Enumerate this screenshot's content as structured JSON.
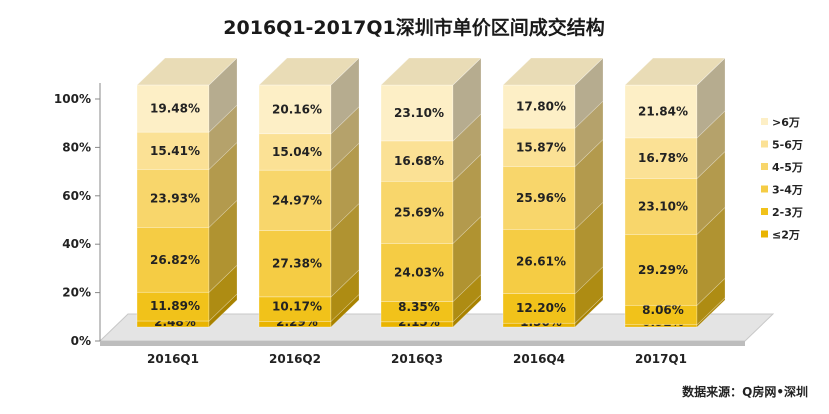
{
  "chart_data": {
    "type": "bar",
    "stacked": true,
    "title": "2016Q1-2017Q1深圳市单价区间成交结构",
    "categories": [
      "2016Q1",
      "2016Q2",
      "2016Q3",
      "2016Q4",
      "2017Q1"
    ],
    "series": [
      {
        "name": "≤2万",
        "color": "#E9B400",
        "values": [
          2.48,
          2.29,
          2.15,
          1.56,
          0.92
        ],
        "labels": [
          "2.48%",
          "2.29%",
          "2.15%",
          "1.56%",
          "0.92%"
        ]
      },
      {
        "name": "2-3万",
        "color": "#F1C21A",
        "values": [
          11.89,
          10.17,
          8.35,
          12.2,
          8.06
        ],
        "labels": [
          "11.89%",
          "10.17%",
          "8.35%",
          "12.20%",
          "8.06%"
        ]
      },
      {
        "name": "3-4万",
        "color": "#F5CC44",
        "values": [
          26.82,
          27.38,
          24.03,
          26.61,
          29.29
        ],
        "labels": [
          "26.82%",
          "27.38%",
          "24.03%",
          "26.61%",
          "29.29%"
        ]
      },
      {
        "name": "4-5万",
        "color": "#F8D66B",
        "values": [
          23.93,
          24.97,
          25.69,
          25.96,
          23.1
        ],
        "labels": [
          "23.93%",
          "24.97%",
          "25.69%",
          "25.96%",
          "23.10%"
        ]
      },
      {
        "name": "5-6万",
        "color": "#FBE195",
        "values": [
          15.41,
          15.04,
          16.68,
          15.87,
          16.78
        ],
        "labels": [
          "15.41%",
          "15.04%",
          "16.68%",
          "15.87%",
          "16.78%"
        ]
      },
      {
        "name": ">6万",
        "color": "#FDEFC6",
        "values": [
          19.48,
          20.16,
          23.1,
          17.8,
          21.84
        ],
        "labels": [
          "19.48%",
          "20.16%",
          "23.10%",
          "17.80%",
          "21.84%"
        ]
      }
    ],
    "y_ticks": [
      "0%",
      "20%",
      "40%",
      "60%",
      "80%",
      "100%"
    ],
    "ylim": [
      0,
      100
    ],
    "legend_position": "right",
    "grid": false,
    "source": "数据来源：Q房网•深圳"
  }
}
